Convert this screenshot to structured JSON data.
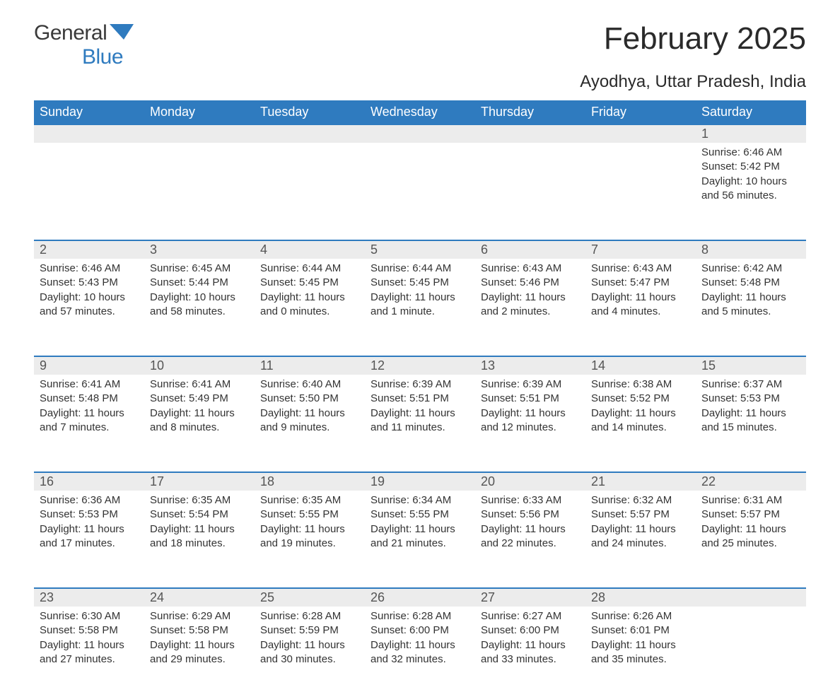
{
  "brand": {
    "part1": "General",
    "part2": "Blue"
  },
  "title": "February 2025",
  "subtitle": "Ayodhya, Uttar Pradesh, India",
  "colors": {
    "header_bg": "#2f7bbf",
    "header_text": "#ffffff",
    "daynum_bg": "#ececec",
    "daynum_border": "#2f7bbf",
    "body_text": "#333333",
    "title_text": "#2a2a2a",
    "logo_gray": "#3a3a3a",
    "logo_blue": "#2f7bbf",
    "page_bg": "#ffffff"
  },
  "typography": {
    "title_fontsize": 44,
    "subtitle_fontsize": 24,
    "header_fontsize": 18,
    "daynum_fontsize": 18,
    "cell_fontsize": 15,
    "font_family": "Arial"
  },
  "layout": {
    "columns": 7,
    "rows": 5,
    "first_day_column": 6,
    "days_in_month": 28
  },
  "weekdays": [
    "Sunday",
    "Monday",
    "Tuesday",
    "Wednesday",
    "Thursday",
    "Friday",
    "Saturday"
  ],
  "days": [
    {
      "n": 1,
      "sunrise": "6:46 AM",
      "sunset": "5:42 PM",
      "daylight": "10 hours and 56 minutes."
    },
    {
      "n": 2,
      "sunrise": "6:46 AM",
      "sunset": "5:43 PM",
      "daylight": "10 hours and 57 minutes."
    },
    {
      "n": 3,
      "sunrise": "6:45 AM",
      "sunset": "5:44 PM",
      "daylight": "10 hours and 58 minutes."
    },
    {
      "n": 4,
      "sunrise": "6:44 AM",
      "sunset": "5:45 PM",
      "daylight": "11 hours and 0 minutes."
    },
    {
      "n": 5,
      "sunrise": "6:44 AM",
      "sunset": "5:45 PM",
      "daylight": "11 hours and 1 minute."
    },
    {
      "n": 6,
      "sunrise": "6:43 AM",
      "sunset": "5:46 PM",
      "daylight": "11 hours and 2 minutes."
    },
    {
      "n": 7,
      "sunrise": "6:43 AM",
      "sunset": "5:47 PM",
      "daylight": "11 hours and 4 minutes."
    },
    {
      "n": 8,
      "sunrise": "6:42 AM",
      "sunset": "5:48 PM",
      "daylight": "11 hours and 5 minutes."
    },
    {
      "n": 9,
      "sunrise": "6:41 AM",
      "sunset": "5:48 PM",
      "daylight": "11 hours and 7 minutes."
    },
    {
      "n": 10,
      "sunrise": "6:41 AM",
      "sunset": "5:49 PM",
      "daylight": "11 hours and 8 minutes."
    },
    {
      "n": 11,
      "sunrise": "6:40 AM",
      "sunset": "5:50 PM",
      "daylight": "11 hours and 9 minutes."
    },
    {
      "n": 12,
      "sunrise": "6:39 AM",
      "sunset": "5:51 PM",
      "daylight": "11 hours and 11 minutes."
    },
    {
      "n": 13,
      "sunrise": "6:39 AM",
      "sunset": "5:51 PM",
      "daylight": "11 hours and 12 minutes."
    },
    {
      "n": 14,
      "sunrise": "6:38 AM",
      "sunset": "5:52 PM",
      "daylight": "11 hours and 14 minutes."
    },
    {
      "n": 15,
      "sunrise": "6:37 AM",
      "sunset": "5:53 PM",
      "daylight": "11 hours and 15 minutes."
    },
    {
      "n": 16,
      "sunrise": "6:36 AM",
      "sunset": "5:53 PM",
      "daylight": "11 hours and 17 minutes."
    },
    {
      "n": 17,
      "sunrise": "6:35 AM",
      "sunset": "5:54 PM",
      "daylight": "11 hours and 18 minutes."
    },
    {
      "n": 18,
      "sunrise": "6:35 AM",
      "sunset": "5:55 PM",
      "daylight": "11 hours and 19 minutes."
    },
    {
      "n": 19,
      "sunrise": "6:34 AM",
      "sunset": "5:55 PM",
      "daylight": "11 hours and 21 minutes."
    },
    {
      "n": 20,
      "sunrise": "6:33 AM",
      "sunset": "5:56 PM",
      "daylight": "11 hours and 22 minutes."
    },
    {
      "n": 21,
      "sunrise": "6:32 AM",
      "sunset": "5:57 PM",
      "daylight": "11 hours and 24 minutes."
    },
    {
      "n": 22,
      "sunrise": "6:31 AM",
      "sunset": "5:57 PM",
      "daylight": "11 hours and 25 minutes."
    },
    {
      "n": 23,
      "sunrise": "6:30 AM",
      "sunset": "5:58 PM",
      "daylight": "11 hours and 27 minutes."
    },
    {
      "n": 24,
      "sunrise": "6:29 AM",
      "sunset": "5:58 PM",
      "daylight": "11 hours and 29 minutes."
    },
    {
      "n": 25,
      "sunrise": "6:28 AM",
      "sunset": "5:59 PM",
      "daylight": "11 hours and 30 minutes."
    },
    {
      "n": 26,
      "sunrise": "6:28 AM",
      "sunset": "6:00 PM",
      "daylight": "11 hours and 32 minutes."
    },
    {
      "n": 27,
      "sunrise": "6:27 AM",
      "sunset": "6:00 PM",
      "daylight": "11 hours and 33 minutes."
    },
    {
      "n": 28,
      "sunrise": "6:26 AM",
      "sunset": "6:01 PM",
      "daylight": "11 hours and 35 minutes."
    }
  ],
  "labels": {
    "sunrise": "Sunrise:",
    "sunset": "Sunset:",
    "daylight": "Daylight:"
  }
}
